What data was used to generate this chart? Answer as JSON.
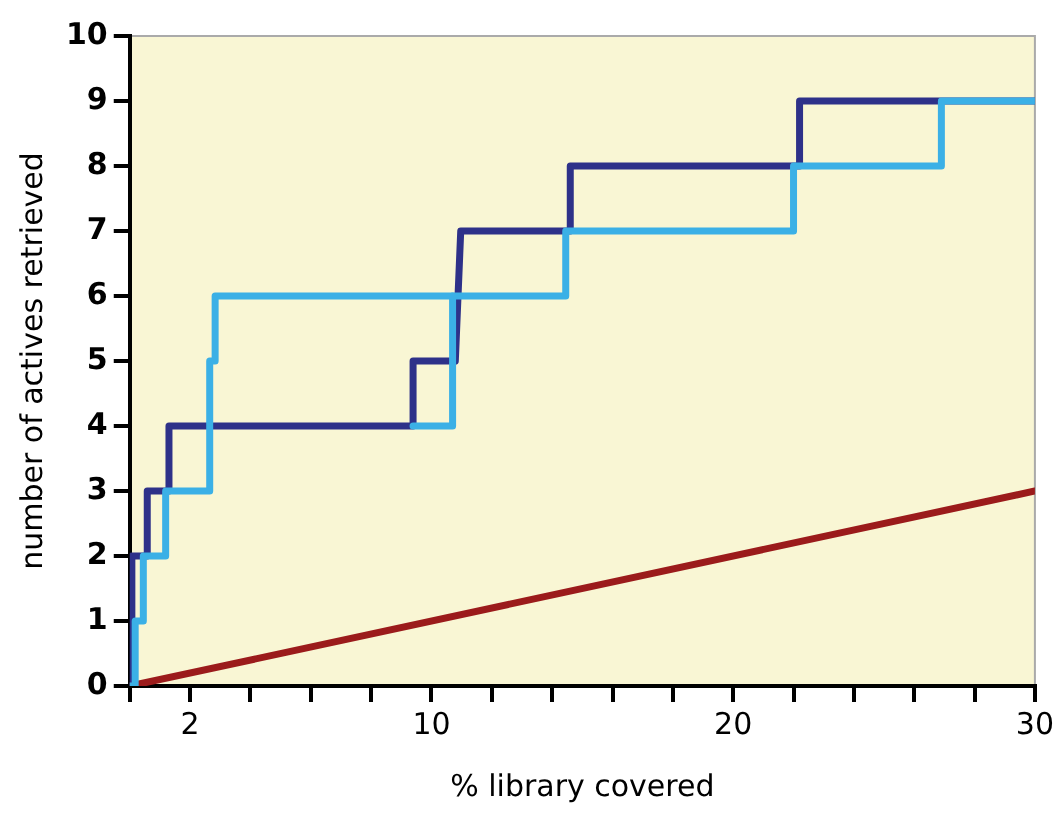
{
  "chart_data": {
    "type": "line",
    "xlabel": "% library covered",
    "ylabel": "number of actives retrieved",
    "xlim": [
      0,
      30
    ],
    "ylim": [
      0,
      10
    ],
    "xticks": [
      {
        "value": 0,
        "label": null
      },
      2,
      {
        "value": 4,
        "label": null
      },
      {
        "value": 6,
        "label": null
      },
      {
        "value": 8,
        "label": null
      },
      10,
      {
        "value": 12,
        "label": null
      },
      {
        "value": 14,
        "label": null
      },
      {
        "value": 16,
        "label": null
      },
      {
        "value": 18,
        "label": null
      },
      20,
      {
        "value": 22,
        "label": null
      },
      {
        "value": 24,
        "label": null
      },
      {
        "value": 26,
        "label": null
      },
      {
        "value": 28,
        "label": null
      },
      30
    ],
    "yticks": [
      0,
      1,
      2,
      3,
      4,
      5,
      6,
      7,
      8,
      9,
      10
    ],
    "grid": false,
    "legend": false,
    "marker": "none",
    "line_style": "solid",
    "series": [
      {
        "color": "#3bb0e6",
        "x": [
          0,
          0.18,
          0.18,
          0.45,
          0.45,
          1.19,
          1.19,
          2.65,
          2.65,
          2.83,
          2.83,
          14.45,
          14.45,
          22.0,
          22.0,
          26.9,
          26.9,
          30
        ],
        "values": [
          0,
          0,
          1,
          1,
          2,
          2,
          3,
          3,
          5,
          5,
          6,
          6,
          7,
          7,
          8,
          8,
          9,
          9
        ]
      },
      {
        "color": "#3bb0e6",
        "x": [
          9.39,
          10.7,
          10.7
        ],
        "values": [
          4,
          4,
          6
        ]
      },
      {
        "color": "#2e3189",
        "x": [
          0.07,
          0.07,
          0.58,
          0.58,
          1.3,
          1.3,
          9.39,
          9.39,
          10.79,
          10.97,
          14.6,
          14.6,
          22.2,
          22.2,
          30
        ],
        "values": [
          0,
          2,
          2,
          3,
          3,
          4,
          4,
          5,
          5,
          7,
          7,
          8,
          8,
          9,
          9
        ]
      },
      {
        "color": "#9b1b1b",
        "x": [
          0,
          30
        ],
        "values": [
          0,
          3
        ]
      }
    ]
  }
}
